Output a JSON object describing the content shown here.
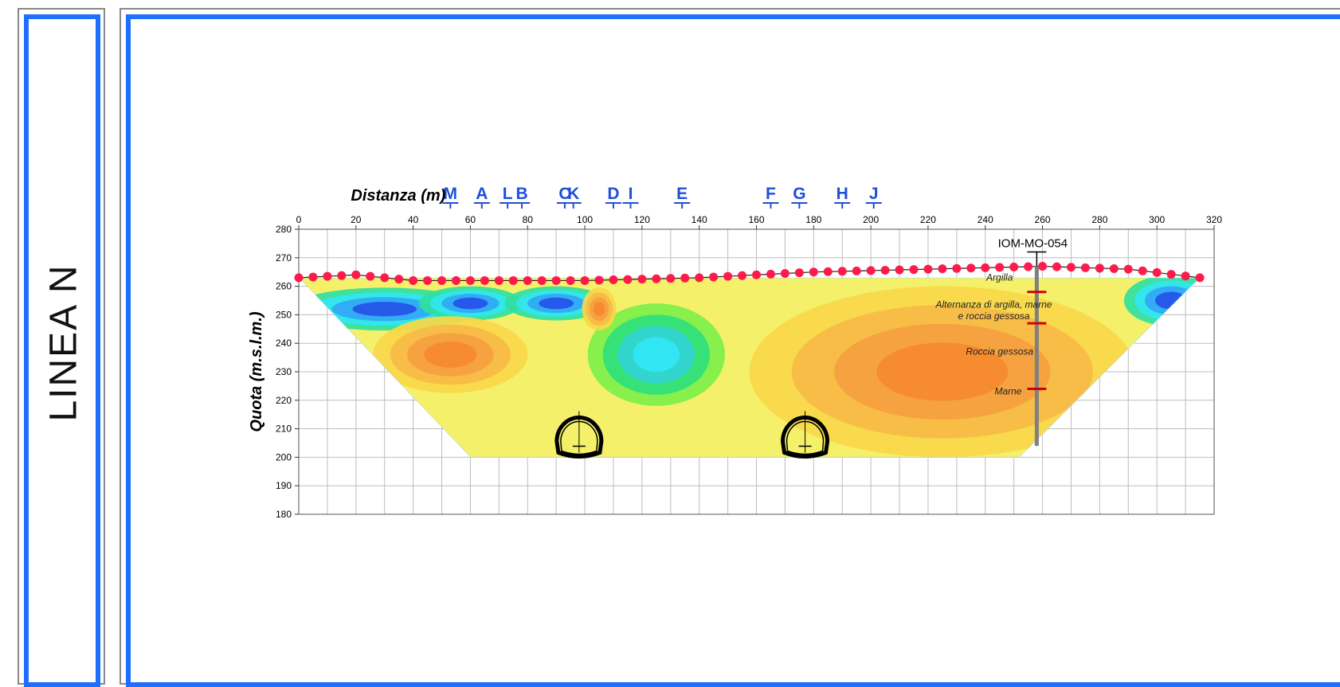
{
  "side_title": "LINEA N",
  "chart_data": {
    "type": "heatmap",
    "xlabel": "Distanza (m)",
    "ylabel": "Quota (m.s.l.m.)",
    "xlim": [
      0,
      320
    ],
    "ylim": [
      180,
      280
    ],
    "xticks": [
      0,
      20,
      40,
      60,
      80,
      100,
      120,
      140,
      160,
      180,
      200,
      220,
      240,
      260,
      280,
      300,
      320
    ],
    "yticks": [
      180,
      190,
      200,
      210,
      220,
      230,
      240,
      250,
      260,
      270,
      280
    ],
    "grid": true,
    "markers": [
      {
        "label": "M",
        "x": 53
      },
      {
        "label": "A",
        "x": 64
      },
      {
        "label": "L",
        "x": 73
      },
      {
        "label": "B",
        "x": 78
      },
      {
        "label": "C",
        "x": 93
      },
      {
        "label": "K",
        "x": 96
      },
      {
        "label": "D",
        "x": 110
      },
      {
        "label": "I",
        "x": 116
      },
      {
        "label": "E",
        "x": 134
      },
      {
        "label": "F",
        "x": 165
      },
      {
        "label": "G",
        "x": 175
      },
      {
        "label": "H",
        "x": 190
      },
      {
        "label": "J",
        "x": 201
      }
    ],
    "electrodes": {
      "x_start": 0,
      "x_end": 315,
      "spacing": 5,
      "elevation_profile": [
        [
          0,
          263
        ],
        [
          20,
          264
        ],
        [
          40,
          262
        ],
        [
          60,
          262
        ],
        [
          100,
          262
        ],
        [
          140,
          263
        ],
        [
          180,
          265
        ],
        [
          220,
          266
        ],
        [
          260,
          267
        ],
        [
          290,
          266
        ],
        [
          315,
          263
        ]
      ]
    },
    "borehole": {
      "label": "IOM-MO-054",
      "x": 258,
      "top": 267,
      "bottom": 204,
      "layer_boundaries": [
        258,
        247,
        224
      ],
      "layers": [
        {
          "name": "Argilla",
          "x": 245,
          "y": 262
        },
        {
          "name": "Alternanza di argilla, marne",
          "x": 243,
          "y": 252.5
        },
        {
          "name": "e roccia gessosa",
          "x": 243,
          "y": 248.5
        },
        {
          "name": "Roccia gessosa",
          "x": 245,
          "y": 236
        },
        {
          "name": "Marne",
          "x": 248,
          "y": 222
        }
      ]
    },
    "tunnels": [
      {
        "x": 98,
        "y": 205
      },
      {
        "x": 177,
        "y": 205
      }
    ],
    "section_outline": [
      [
        0,
        263
      ],
      [
        60,
        200
      ],
      [
        252,
        200
      ],
      [
        315,
        263
      ]
    ],
    "colors": {
      "electrode": "#ff1a4b",
      "marker": "#1f4fd8",
      "frame": "#1f6fff",
      "borehole": "#808080",
      "boundary": "#d00000"
    },
    "anomalies": [
      {
        "x": 30,
        "y": 252,
        "rx": 22,
        "ry": 5,
        "level": "low"
      },
      {
        "x": 60,
        "y": 254,
        "rx": 12,
        "ry": 4,
        "level": "low"
      },
      {
        "x": 90,
        "y": 254,
        "rx": 12,
        "ry": 4,
        "level": "low"
      },
      {
        "x": 305,
        "y": 255,
        "rx": 11,
        "ry": 6,
        "level": "low"
      },
      {
        "x": 125,
        "y": 236,
        "rx": 16,
        "ry": 12,
        "level": "low-mid"
      },
      {
        "x": 53,
        "y": 236,
        "rx": 18,
        "ry": 9,
        "level": "high"
      },
      {
        "x": 105,
        "y": 252,
        "rx": 4,
        "ry": 5,
        "level": "high"
      },
      {
        "x": 225,
        "y": 230,
        "rx": 45,
        "ry": 20,
        "level": "high"
      }
    ]
  }
}
